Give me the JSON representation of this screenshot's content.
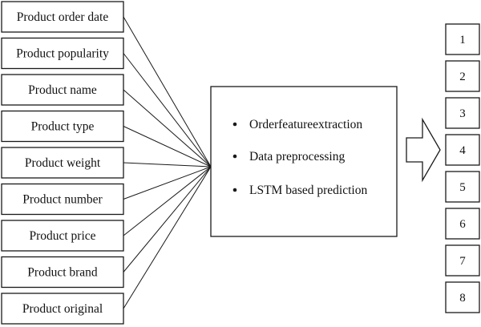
{
  "features": [
    "Product order date",
    "Product popularity",
    "Product name",
    "Product type",
    "Product weight",
    "Product number",
    "Product price",
    "Product brand",
    "Product original"
  ],
  "process": {
    "steps": [
      "Orderfeatureextraction",
      "Data preprocessing",
      "LSTM based prediction"
    ]
  },
  "outputs": [
    "1",
    "2",
    "3",
    "4",
    "5",
    "6",
    "7",
    "8"
  ],
  "icons": {
    "bullet": "bullet-icon",
    "arrow": "right-arrow-icon"
  },
  "colors": {
    "stroke": "#1a1a1a",
    "text": "#111111",
    "background": "#ffffff"
  }
}
